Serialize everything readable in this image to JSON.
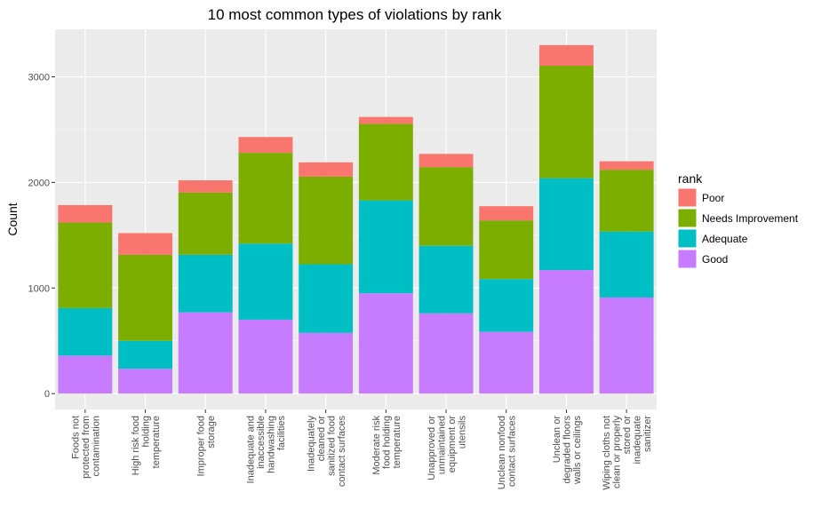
{
  "chart_data": {
    "type": "bar",
    "stacked": true,
    "title": "10 most common types of violations by rank",
    "xlabel": "",
    "ylabel": "Count",
    "ylim": [
      -150,
      3450
    ],
    "yticks": [
      0,
      1000,
      2000,
      3000
    ],
    "grid": true,
    "legend_position": "right",
    "legend_title": "rank",
    "categories": [
      [
        "Foods not",
        "protected from",
        "contamination"
      ],
      [
        "High risk food",
        "holding",
        "temperature"
      ],
      [
        "Improper food",
        "storage"
      ],
      [
        "Inadequate and",
        "inaccessible",
        "handwashing",
        "facilities"
      ],
      [
        "Inadequately",
        "cleaned or",
        "sanitized food",
        "contact surfaces"
      ],
      [
        "Moderate risk",
        "food holding",
        "temperature"
      ],
      [
        "Unapproved or",
        "unmaintained",
        "equipment or",
        "utensils"
      ],
      [
        "Unclean nonfood",
        "contact surfaces"
      ],
      [
        "Unclean or",
        "degraded floors",
        "walls or ceilings"
      ],
      [
        "Wiping cloths not",
        "clean or properly",
        "stored or",
        "inadequate",
        "sanitizer"
      ]
    ],
    "series": [
      {
        "name": "Good",
        "color": "#C77CFF",
        "values": [
          360,
          235,
          770,
          700,
          575,
          950,
          760,
          585,
          1170,
          910
        ]
      },
      {
        "name": "Adequate",
        "color": "#00BFC4",
        "values": [
          450,
          265,
          545,
          720,
          650,
          880,
          640,
          500,
          870,
          625
        ]
      },
      {
        "name": "Needs Improvement",
        "color": "#7CAE00",
        "values": [
          810,
          815,
          590,
          860,
          830,
          725,
          745,
          555,
          1065,
          585
        ]
      },
      {
        "name": "Poor",
        "color": "#F8766D",
        "values": [
          165,
          205,
          115,
          150,
          135,
          65,
          125,
          135,
          195,
          80
        ]
      }
    ],
    "legend_order": [
      "Poor",
      "Needs Improvement",
      "Adequate",
      "Good"
    ]
  }
}
